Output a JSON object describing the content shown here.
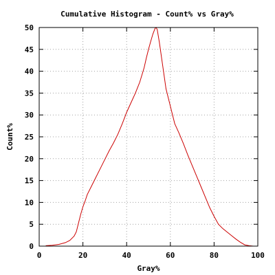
{
  "chart_data": {
    "type": "line",
    "title": "Cumulative Histogram - Count% vs Gray%",
    "xlabel": "Gray%",
    "ylabel": "Count%",
    "xlim": [
      0,
      100
    ],
    "ylim": [
      0,
      50
    ],
    "xticks": [
      0,
      20,
      40,
      60,
      80,
      100
    ],
    "yticks": [
      0,
      5,
      10,
      15,
      20,
      25,
      30,
      35,
      40,
      45,
      50
    ],
    "grid": true,
    "legend": "none",
    "line_color": "#cc0000",
    "series": [
      {
        "x": [
          3,
          6,
          9,
          12,
          14,
          16,
          17,
          18,
          19,
          20,
          21,
          22,
          24,
          26,
          28,
          30,
          32,
          34,
          36,
          38,
          39,
          40,
          42,
          44,
          46,
          48,
          49,
          50,
          51,
          52,
          53,
          53.5,
          54,
          55,
          56,
          57,
          58,
          60,
          62,
          64,
          66,
          68,
          70,
          72,
          74,
          76,
          78,
          80,
          82,
          84,
          86,
          88,
          90,
          92,
          94,
          96,
          98
        ],
        "y": [
          0.1,
          0.2,
          0.4,
          0.8,
          1.3,
          2.3,
          3.3,
          5.3,
          7.3,
          9,
          10.3,
          11.8,
          13.8,
          15.8,
          17.8,
          19.8,
          21.8,
          23.6,
          25.6,
          28,
          29.3,
          30.6,
          32.8,
          35,
          37.5,
          40.8,
          43,
          45,
          46.8,
          48.5,
          49.8,
          50,
          49.5,
          46.5,
          43,
          39.5,
          36,
          32,
          28,
          25.8,
          23.4,
          20.8,
          18.4,
          16,
          13.6,
          11.2,
          8.8,
          6.8,
          5,
          4,
          3.2,
          2.4,
          1.6,
          0.9,
          0.3,
          0.1,
          0
        ]
      }
    ]
  }
}
